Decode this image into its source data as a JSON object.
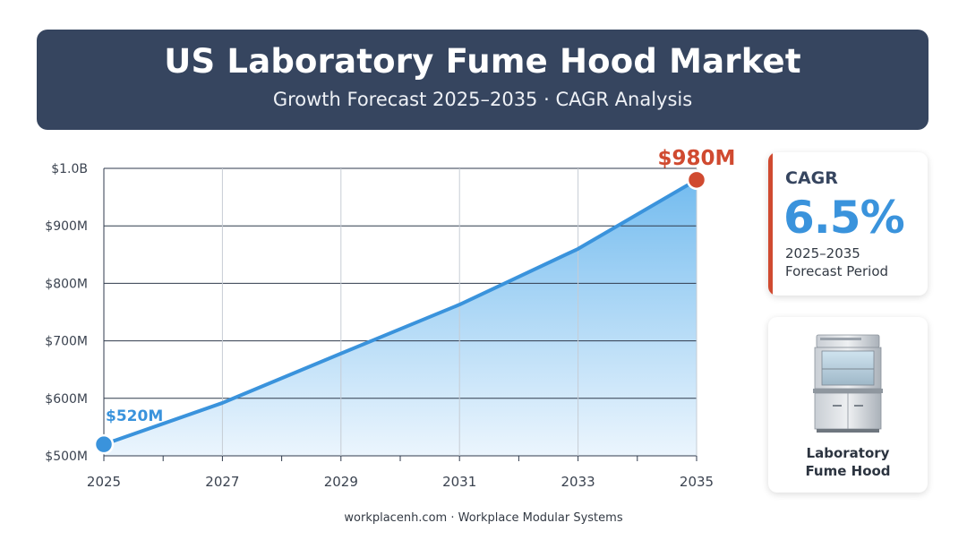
{
  "header": {
    "title": "US Laboratory Fume Hood Market",
    "subtitle": "Growth Forecast 2025–2035 · CAGR Analysis"
  },
  "chart_data": {
    "type": "area",
    "title": "",
    "xlabel": "",
    "ylabel": "",
    "x": [
      2025,
      2027,
      2029,
      2031,
      2033,
      2035
    ],
    "series": [
      {
        "values": [
          520,
          592,
          678,
          763,
          860,
          980
        ]
      }
    ],
    "ylim": [
      500,
      1000
    ],
    "xlim": [
      2025,
      2035
    ],
    "y_ticks": [
      500,
      600,
      700,
      800,
      900,
      1000
    ],
    "y_tick_labels": [
      "$500M",
      "$600M",
      "$700M",
      "$800M",
      "$900M",
      "$1.0B"
    ],
    "x_ticks": [
      2025,
      2027,
      2029,
      2031,
      2033,
      2035
    ],
    "x_tick_labels": [
      "2025",
      "2027",
      "2029",
      "2031",
      "2033",
      "2035"
    ],
    "grid": true,
    "annotations": [
      {
        "x": 2025,
        "y": 520,
        "label": "$520M",
        "color": "#3a93dc"
      },
      {
        "x": 2035,
        "y": 980,
        "label": "$980M",
        "color": "#d04a30"
      }
    ],
    "line_color": "#3a93dc",
    "fill_color_top": "#6cb8ee",
    "fill_color_bottom": "#e9f4fd"
  },
  "cagr": {
    "label": "CAGR",
    "value": "6.5%",
    "period_line1": "2025–2035",
    "period_line2": "Forecast Period",
    "accent_color": "#d04a30"
  },
  "product": {
    "icon": "fume-hood-icon",
    "caption_line1": "Laboratory",
    "caption_line2": "Fume Hood"
  },
  "footer": {
    "text": "workplacenh.com · Workplace Modular Systems"
  }
}
